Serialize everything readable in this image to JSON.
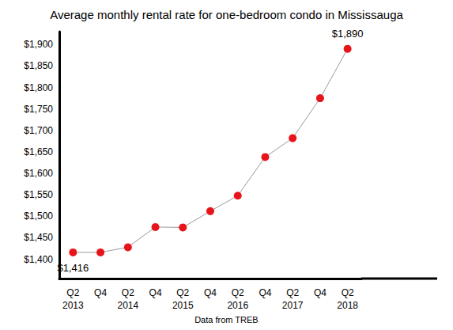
{
  "chart_data": {
    "type": "line",
    "title": "Average monthly rental rate for one-bedroom condo in Mississauga",
    "caption": "Data from TREB",
    "categories": [
      "Q2\n2013",
      "Q4",
      "Q2\n2014",
      "Q4",
      "Q2\n2015",
      "Q4",
      "Q2\n2016",
      "Q4",
      "Q2\n2017",
      "Q4",
      "Q2\n2018"
    ],
    "values": [
      1416,
      1416,
      1428,
      1475,
      1474,
      1512,
      1548,
      1638,
      1682,
      1775,
      1890
    ],
    "value_labels": [
      "$1,416",
      null,
      null,
      null,
      null,
      null,
      null,
      null,
      null,
      null,
      "$1,890"
    ],
    "data_labels": true,
    "color": "#e8141b",
    "line_color": "#999999",
    "marker": "circle",
    "line_style": "solid",
    "ylim": [
      1355,
      1930
    ],
    "yticks": [
      {
        "value": 1400,
        "label": "$1,400"
      },
      {
        "value": 1450,
        "label": "$1,450"
      },
      {
        "value": 1500,
        "label": "$1,500"
      },
      {
        "value": 1550,
        "label": "$1,550"
      },
      {
        "value": 1600,
        "label": "$1,600"
      },
      {
        "value": 1650,
        "label": "$1,650"
      },
      {
        "value": 1700,
        "label": "$1,700"
      },
      {
        "value": 1750,
        "label": "$1,750"
      },
      {
        "value": 1800,
        "label": "$1,800"
      },
      {
        "value": 1850,
        "label": "$1,850"
      },
      {
        "value": 1900,
        "label": "$1,900"
      }
    ],
    "grid": false
  }
}
